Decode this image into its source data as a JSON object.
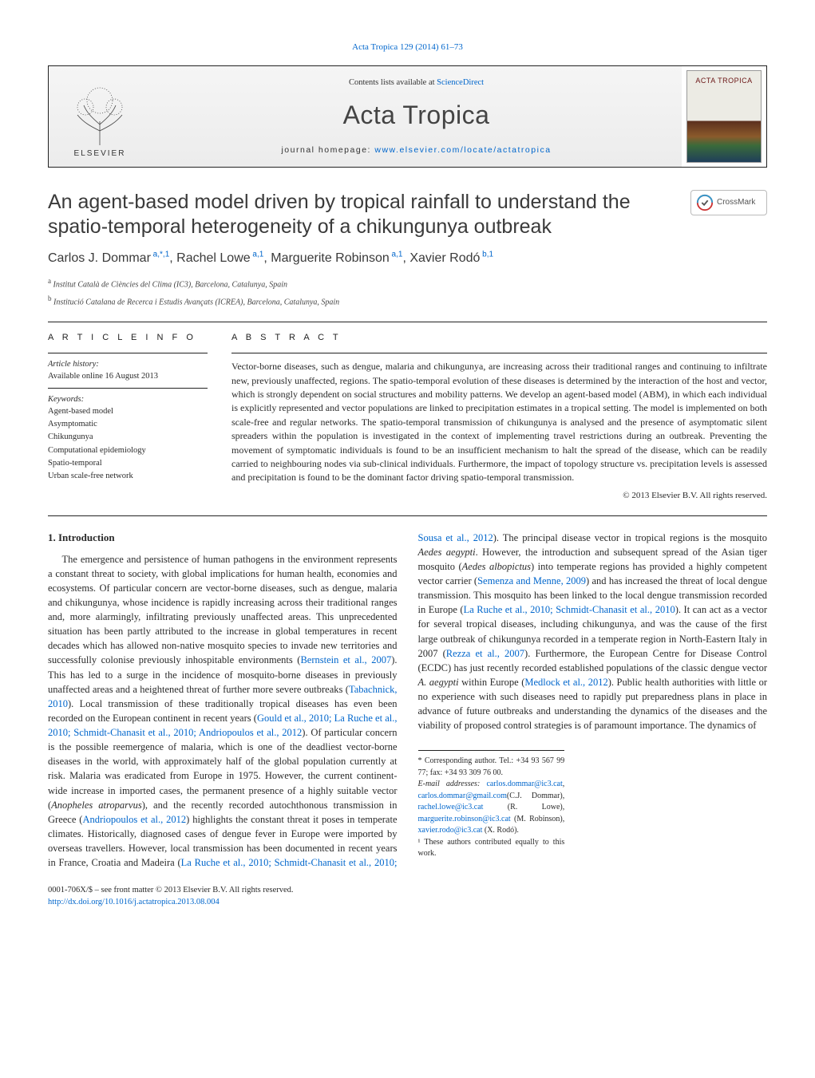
{
  "journal_ref": "Acta Tropica 129 (2014) 61–73",
  "banner": {
    "contents_prefix": "Contents lists available at ",
    "contents_link": "ScienceDirect",
    "journal_name": "Acta Tropica",
    "homepage_prefix": "journal homepage: ",
    "homepage_url": "www.elsevier.com/locate/actatropica",
    "publisher_label": "ELSEVIER",
    "cover_title": "ACTA TROPICA"
  },
  "crossmark_label": "CrossMark",
  "article": {
    "title": "An agent-based model driven by tropical rainfall to understand the spatio-temporal heterogeneity of a chikungunya outbreak",
    "authors_html": "Carlos J. Dommar",
    "author_list": [
      {
        "name": "Carlos J. Dommar",
        "marks": "a,*,1"
      },
      {
        "name": "Rachel Lowe",
        "marks": "a,1"
      },
      {
        "name": "Marguerite Robinson",
        "marks": "a,1"
      },
      {
        "name": "Xavier Rodó",
        "marks": "b,1"
      }
    ],
    "affiliations": [
      {
        "mark": "a",
        "text": "Institut Català de Ciències del Clima (IC3), Barcelona, Catalunya, Spain"
      },
      {
        "mark": "b",
        "text": "Institució Catalana de Recerca i Estudis Avançats (ICREA), Barcelona, Catalunya, Spain"
      }
    ]
  },
  "info": {
    "heading": "A R T I C L E   I N F O",
    "history_label": "Article history:",
    "history_value": "Available online 16 August 2013",
    "keywords_label": "Keywords:",
    "keywords": [
      "Agent-based model",
      "Asymptomatic",
      "Chikungunya",
      "Computational epidemiology",
      "Spatio-temporal",
      "Urban scale-free network"
    ]
  },
  "abstract": {
    "heading": "A B S T R A C T",
    "text": "Vector-borne diseases, such as dengue, malaria and chikungunya, are increasing across their traditional ranges and continuing to infiltrate new, previously unaffected, regions. The spatio-temporal evolution of these diseases is determined by the interaction of the host and vector, which is strongly dependent on social structures and mobility patterns. We develop an agent-based model (ABM), in which each individual is explicitly represented and vector populations are linked to precipitation estimates in a tropical setting. The model is implemented on both scale-free and regular networks. The spatio-temporal transmission of chikungunya is analysed and the presence of asymptomatic silent spreaders within the population is investigated in the context of implementing travel restrictions during an outbreak. Preventing the movement of symptomatic individuals is found to be an insufficient mechanism to halt the spread of the disease, which can be readily carried to neighbouring nodes via sub-clinical individuals. Furthermore, the impact of topology structure vs. precipitation levels is assessed and precipitation is found to be the dominant factor driving spatio-temporal transmission.",
    "copyright": "© 2013 Elsevier B.V. All rights reserved."
  },
  "intro": {
    "heading": "1.  Introduction",
    "para1_pre": "The emergence and persistence of human pathogens in the environment represents a constant threat to society, with global implications for human health, economies and ecosystems. Of particular concern are vector-borne diseases, such as dengue, malaria and chikungunya, whose incidence is rapidly increasing across their traditional ranges and, more alarmingly, infiltrating previously unaffected areas. This unprecedented situation has been partly attributed to the increase in global temperatures in recent decades which has allowed non-native mosquito species to invade new territories and successfully colonise previously inhospitable environments (",
    "cite1": "Bernstein et al., 2007",
    "para1_mid1": "). This has led to a surge in the incidence of mosquito-borne diseases in previously unaffected areas and a heightened threat of further more severe outbreaks (",
    "cite2": "Tabachnick, 2010",
    "para1_mid2": "). Local transmission of these traditionally tropical diseases has even been recorded on the European continent in recent years (",
    "cite3": "Gould et al., 2010; La Ruche et al., 2010; Schmidt-Chanasit et al., 2010; Andriopoulos et al., 2012",
    "para1_post": "). Of particular concern is the possible reemergence of malaria, which is one of the deadliest vector-borne diseases in the world, with approximately ",
    "para2_pre": "half of the global population currently at risk. Malaria was eradicated from Europe in 1975. However, the current continent-wide increase in imported cases, the permanent presence of a highly suitable vector (",
    "vec1": "Anopheles atroparvus",
    "para2_mid1": "), and the recently recorded autochthonous transmission in Greece (",
    "cite4": "Andriopoulos et al., 2012",
    "para2_mid2": ") highlights the constant threat it poses in temperate climates. Historically, diagnosed cases of dengue fever in Europe were imported by overseas travellers. However, local transmission has been documented in recent years in France, Croatia and Madeira (",
    "cite5": "La Ruche et al., 2010; Schmidt-Chanasit et al., 2010; Sousa et al., 2012",
    "para2_mid3": "). The principal disease vector in tropical regions is the mosquito ",
    "vec2": "Aedes aegypti",
    "para2_mid4": ". However, the introduction and subsequent spread of the Asian tiger mosquito (",
    "vec3": "Aedes albopictus",
    "para2_mid5": ") into temperate regions has provided a highly competent vector carrier (",
    "cite6": "Semenza and Menne, 2009",
    "para2_mid6": ") and has increased the threat of local dengue transmission. This mosquito has been linked to the local dengue transmission recorded in Europe (",
    "cite7": "La Ruche et al., 2010; Schmidt-Chanasit et al., 2010",
    "para2_mid7": "). It can act as a vector for several tropical diseases, including chikungunya, and was the cause of the first large outbreak of chikungunya recorded in a temperate region in North-Eastern Italy in 2007 (",
    "cite8": "Rezza et al., 2007",
    "para2_mid8": "). Furthermore, the European Centre for Disease Control (ECDC) has just recently recorded established populations of the classic dengue vector ",
    "vec4": "A. aegypti",
    "para2_mid9": " within Europe (",
    "cite9": "Medlock et al., 2012",
    "para2_post": "). Public health authorities with little or no experience with such diseases need to rapidly put preparedness plans in place in advance of future outbreaks and understanding the dynamics of the diseases and the viability of proposed control strategies is of paramount importance. The dynamics of"
  },
  "footnotes": {
    "corr_label": "* Corresponding author. Tel.: +34 93 567 99 77; fax: +34 93 309 76 00.",
    "email_label": "E-mail addresses: ",
    "emails": [
      {
        "addr": "carlos.dommar@ic3.cat",
        "who": ""
      },
      {
        "addr": "carlos.dommar@gmail.com",
        "who": "(C.J. Dommar), "
      },
      {
        "addr": "rachel.lowe@ic3.cat",
        "who": " (R. Lowe), "
      },
      {
        "addr": "marguerite.robinson@ic3.cat",
        "who": " (M. Robinson), "
      },
      {
        "addr": "xavier.rodo@ic3.cat",
        "who": " (X. Rodó)."
      }
    ],
    "equal": "¹ These authors contributed equally to this work."
  },
  "footer": {
    "issn_line": "0001-706X/$ – see front matter © 2013 Elsevier B.V. All rights reserved.",
    "doi": "http://dx.doi.org/10.1016/j.actatropica.2013.08.004"
  },
  "colors": {
    "link": "#0066cc",
    "text": "#2a2a2a",
    "rule": "#222222"
  }
}
